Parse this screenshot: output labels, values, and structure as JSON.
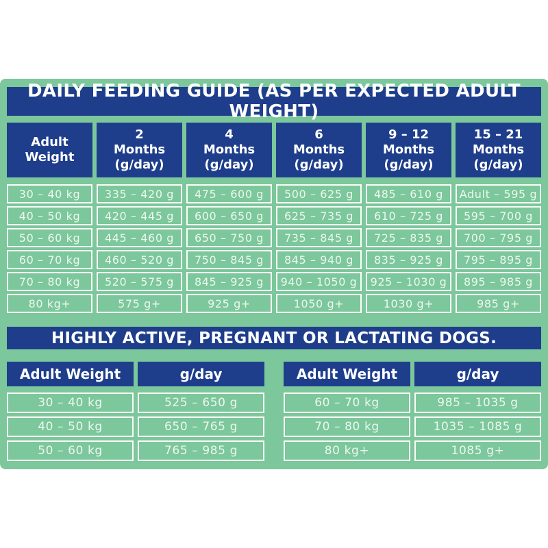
{
  "colors": {
    "panel_green": "#7cc79b",
    "header_blue": "#1e3e8c",
    "border_white": "#fbfdf8",
    "cell_text": "#edf8f0",
    "page_background": "#ffffff"
  },
  "main_table": {
    "title": "DAILY FEEDING GUIDE (AS PER EXPECTED ADULT WEIGHT)",
    "column_headers": [
      "Adult\nWeight",
      "2\nMonths\n(g/day)",
      "4\nMonths\n(g/day)",
      "6\nMonths\n(g/day)",
      "9 – 12\nMonths\n(g/day)",
      "15 – 21\nMonths\n(g/day)"
    ],
    "rows": [
      [
        "30 – 40 kg",
        "335 – 420 g",
        "475 – 600 g",
        "500 – 625 g",
        "485 – 610 g",
        "Adult – 595 g"
      ],
      [
        "40 – 50 kg",
        "420 – 445 g",
        "600 – 650 g",
        "625 – 735 g",
        "610 – 725 g",
        "595 – 700 g"
      ],
      [
        "50 – 60 kg",
        "445 – 460 g",
        "650 – 750 g",
        "735 – 845 g",
        "725 – 835 g",
        "700 – 795 g"
      ],
      [
        "60 – 70 kg",
        "460 – 520 g",
        "750 – 845 g",
        "845 – 940 g",
        "835 – 925 g",
        "795 – 895 g"
      ],
      [
        "70 – 80 kg",
        "520 – 575 g",
        "845 – 925 g",
        "940 – 1050 g",
        "925 – 1030 g",
        "895 – 985 g"
      ],
      [
        "80 kg+",
        "575 g+",
        "925 g+",
        "1050 g+",
        "1030 g+",
        "985 g+"
      ]
    ]
  },
  "active_dogs": {
    "title": "HIGHLY ACTIVE, PREGNANT OR LACTATING DOGS.",
    "tables": [
      {
        "headers": [
          "Adult Weight",
          "g/day"
        ],
        "rows": [
          [
            "30 – 40 kg",
            "525 – 650 g"
          ],
          [
            "40 – 50 kg",
            "650 – 765 g"
          ],
          [
            "50 – 60 kg",
            "765 – 985 g"
          ]
        ]
      },
      {
        "headers": [
          "Adult Weight",
          "g/day"
        ],
        "rows": [
          [
            "60 – 70 kg",
            "985 – 1035 g"
          ],
          [
            "70 – 80 kg",
            "1035 – 1085 g"
          ],
          [
            "80 kg+",
            "1085 g+"
          ]
        ]
      }
    ]
  }
}
